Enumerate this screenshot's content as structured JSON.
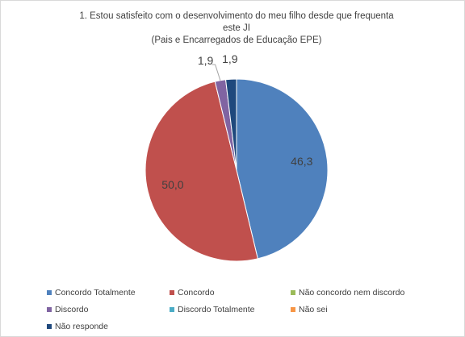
{
  "chart_data": {
    "type": "pie",
    "title": [
      "1. Estou satisfeito com o desenvolvimento do meu filho desde que frequenta",
      "este JI",
      "(Pais e Encarregados de Educação EPE)"
    ],
    "categories": [
      "Concordo Totalmente",
      "Concordo",
      "Não concordo nem discordo",
      "Discordo",
      "Discordo Totalmente",
      "Não sei",
      "Não responde"
    ],
    "values": [
      46.3,
      50.0,
      0,
      1.9,
      0,
      0,
      1.9
    ],
    "value_labels": [
      "46,3",
      "50,0",
      null,
      "1,9",
      null,
      null,
      "1,9"
    ],
    "colors": [
      "#4f81bd",
      "#c0504d",
      "#9bbb59",
      "#8064a2",
      "#4bacc6",
      "#f79646",
      "#1f497d"
    ],
    "legend": "bottom"
  }
}
